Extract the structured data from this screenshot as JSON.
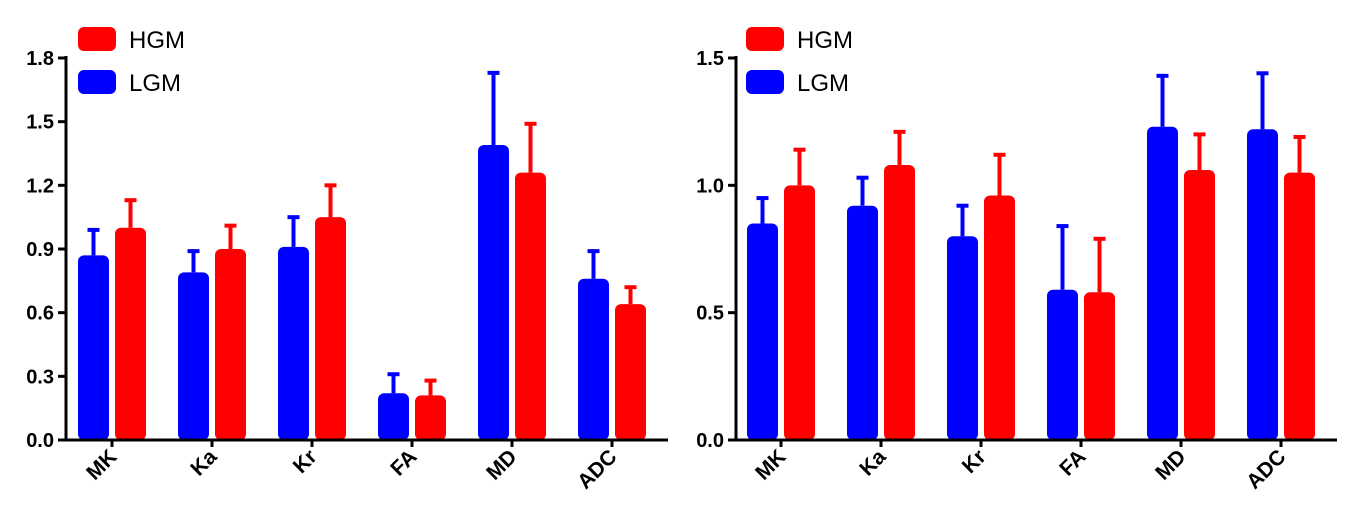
{
  "chart_data": [
    {
      "type": "bar",
      "categories": [
        "MK",
        "Ka",
        "Kr",
        "FA",
        "MD",
        "ADC"
      ],
      "series": [
        {
          "name": "LGM",
          "color": "#0000ff",
          "values": [
            0.87,
            0.79,
            0.91,
            0.22,
            1.39,
            0.76
          ],
          "errors": [
            0.12,
            0.1,
            0.14,
            0.09,
            0.34,
            0.13
          ]
        },
        {
          "name": "HGM",
          "color": "#ff0000",
          "values": [
            1.0,
            0.9,
            1.05,
            0.21,
            1.26,
            0.64
          ],
          "errors": [
            0.13,
            0.11,
            0.15,
            0.07,
            0.23,
            0.08
          ]
        }
      ],
      "legend": [
        "HGM",
        "LGM"
      ],
      "legend_position": "top-left",
      "ylim": [
        0,
        1.8
      ],
      "yticks": [
        "0.0",
        "0.3",
        "0.6",
        "0.9",
        "1.2",
        "1.5",
        "1.8"
      ],
      "xlabel": "",
      "ylabel": "",
      "title": ""
    },
    {
      "type": "bar",
      "categories": [
        "MK",
        "Ka",
        "Kr",
        "FA",
        "MD",
        "ADC"
      ],
      "series": [
        {
          "name": "LGM",
          "color": "#0000ff",
          "values": [
            0.85,
            0.92,
            0.8,
            0.59,
            1.23,
            1.22
          ],
          "errors": [
            0.1,
            0.11,
            0.12,
            0.25,
            0.2,
            0.22
          ]
        },
        {
          "name": "HGM",
          "color": "#ff0000",
          "values": [
            1.0,
            1.08,
            0.96,
            0.58,
            1.06,
            1.05
          ],
          "errors": [
            0.14,
            0.13,
            0.16,
            0.21,
            0.14,
            0.14
          ]
        }
      ],
      "legend": [
        "HGM",
        "LGM"
      ],
      "legend_position": "top-left",
      "ylim": [
        0,
        1.5
      ],
      "yticks": [
        "0.0",
        "0.5",
        "1.0",
        "1.5"
      ],
      "xlabel": "",
      "ylabel": "",
      "title": ""
    }
  ]
}
